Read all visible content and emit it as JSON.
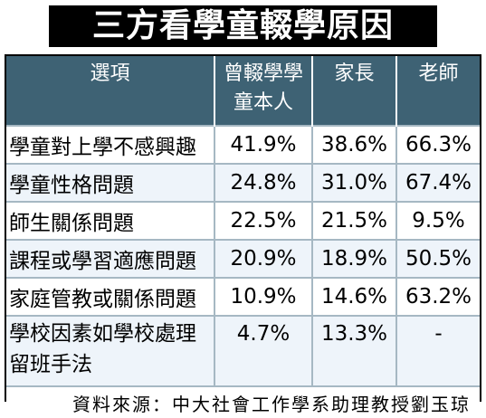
{
  "title": "三方看學童輟學原因",
  "table": {
    "headers": [
      "選項",
      "曾輟學學童本人",
      "家長",
      "老師"
    ],
    "rows": [
      [
        "學童對上學不感興趣",
        "41.9%",
        "38.6%",
        "66.3%"
      ],
      [
        "學童性格問題",
        "24.8%",
        "31.0%",
        "67.4%"
      ],
      [
        "師生關係問題",
        "22.5%",
        "21.5%",
        "9.5%"
      ],
      [
        "課程或學習適應問題",
        "20.9%",
        "18.9%",
        "50.5%"
      ],
      [
        "家庭管教或關係問題",
        "10.9%",
        "14.6%",
        "63.2%"
      ],
      [
        "學校因素如學校處理留班手法",
        "4.7%",
        "13.3%",
        "-"
      ]
    ]
  },
  "source": "資料來源：中大社會工作學系助理教授劉玉琼",
  "colors": {
    "title_bg": "#000000",
    "title_fg": "#ffffff",
    "header_bg": "#3e6274",
    "header_fg": "#ffffff",
    "row_alt_bg": "#eef4fa",
    "grid_line": "#a6b8c3"
  }
}
